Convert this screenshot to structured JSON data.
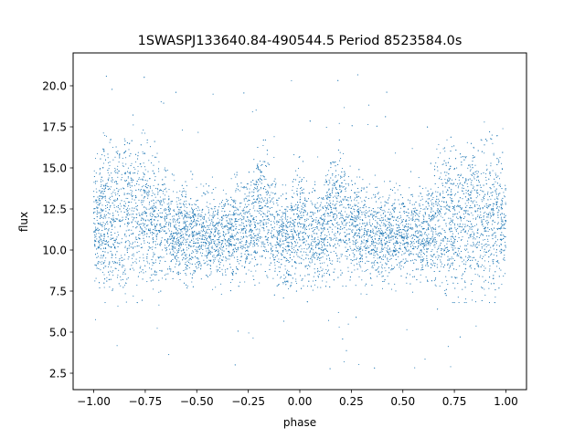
{
  "chart_data": {
    "type": "scatter",
    "title": "1SWASPJ133640.84-490544.5 Period 8523584.0s",
    "xlabel": "phase",
    "ylabel": "flux",
    "xlim": [
      -1.1,
      1.1
    ],
    "ylim": [
      1.5,
      22.0
    ],
    "x_ticks": [
      -1.0,
      -0.75,
      -0.5,
      -0.25,
      0.0,
      0.25,
      0.5,
      0.75,
      1.0
    ],
    "x_tick_labels": [
      "−1.00",
      "−0.75",
      "−0.50",
      "−0.25",
      "0.00",
      "0.25",
      "0.50",
      "0.75",
      "1.00"
    ],
    "y_ticks": [
      2.5,
      5.0,
      7.5,
      10.0,
      12.5,
      15.0,
      17.5,
      20.0
    ],
    "y_tick_labels": [
      "2.5",
      "5.0",
      "7.5",
      "10.0",
      "12.5",
      "15.0",
      "17.5",
      "20.0"
    ],
    "grid": false,
    "marker_color": "#1f77b4",
    "series": [
      {
        "profile_phase": [
          0.0,
          0.05,
          0.1,
          0.15,
          0.2,
          0.25,
          0.3,
          0.35,
          0.4,
          0.45,
          0.5,
          0.55,
          0.6,
          0.65,
          0.7,
          0.75,
          0.8,
          0.85,
          0.9,
          0.95,
          1.0
        ],
        "profile_low": [
          9.0,
          8.0,
          8.0,
          9.0,
          9.0,
          9.0,
          8.5,
          8.5,
          8.5,
          8.5,
          9.0,
          8.5,
          8.5,
          8.5,
          8.0,
          8.0,
          8.0,
          8.0,
          8.0,
          8.0,
          9.0
        ],
        "profile_high": [
          14.5,
          13.5,
          13.5,
          15.5,
          15.5,
          14.0,
          14.0,
          13.5,
          13.0,
          13.5,
          13.0,
          14.0,
          13.0,
          14.5,
          16.0,
          16.0,
          16.5,
          16.0,
          16.0,
          16.0,
          14.5
        ],
        "outlier_range": [
          2.5,
          20.8
        ]
      }
    ]
  }
}
